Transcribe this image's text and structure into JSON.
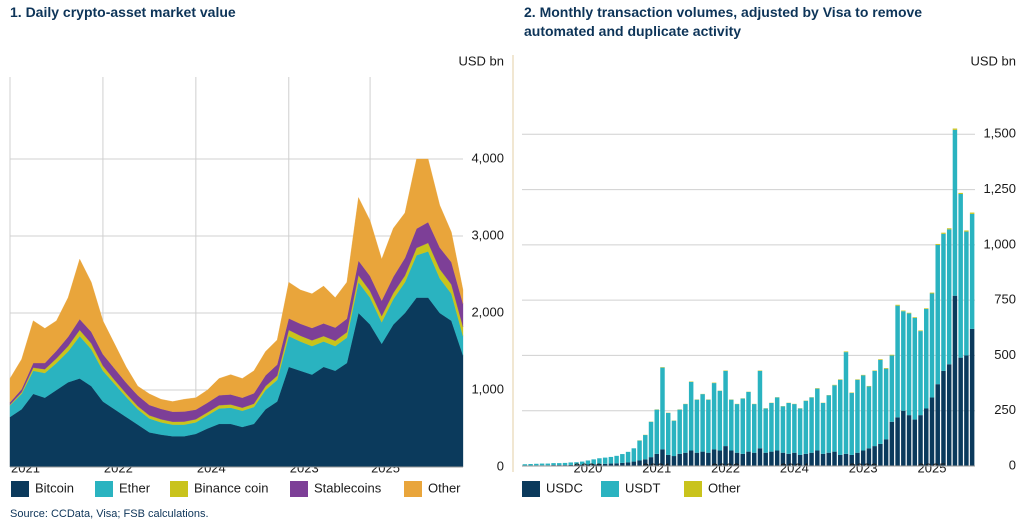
{
  "chart_data": [
    {
      "type": "area",
      "stacked": true,
      "title": "1. Daily crypto-asset market value",
      "y_label": "USD bn",
      "categories": [
        "2021",
        null,
        null,
        null,
        null,
        null,
        null,
        null,
        "2022",
        null,
        null,
        null,
        null,
        null,
        null,
        null,
        "2024",
        null,
        null,
        null,
        null,
        null,
        null,
        null,
        "2023",
        null,
        null,
        null,
        null,
        null,
        null,
        "2025",
        null,
        null,
        null,
        null,
        null,
        null,
        null,
        null
      ],
      "series": [
        {
          "name": "Bitcoin",
          "color": "#0b3a5c",
          "values": [
            650,
            750,
            950,
            900,
            1000,
            1100,
            1150,
            1050,
            850,
            750,
            650,
            550,
            450,
            420,
            400,
            400,
            430,
            500,
            560,
            560,
            520,
            560,
            750,
            850,
            1300,
            1250,
            1200,
            1300,
            1250,
            1350,
            2000,
            1850,
            1600,
            1850,
            2000,
            2200,
            2200,
            2000,
            1900,
            1450
          ]
        },
        {
          "name": "Ether",
          "color": "#2ab3c0",
          "values": [
            150,
            200,
            300,
            320,
            350,
            400,
            550,
            480,
            400,
            330,
            260,
            200,
            180,
            160,
            150,
            150,
            150,
            170,
            200,
            210,
            210,
            220,
            250,
            280,
            400,
            380,
            370,
            330,
            320,
            330,
            400,
            350,
            280,
            330,
            400,
            550,
            600,
            450,
            350,
            250
          ]
        },
        {
          "name": "Binance coin",
          "color": "#c9c31c",
          "values": [
            10,
            20,
            40,
            50,
            60,
            70,
            80,
            75,
            65,
            50,
            45,
            40,
            40,
            40,
            38,
            40,
            40,
            40,
            42,
            42,
            40,
            42,
            50,
            55,
            80,
            75,
            75,
            70,
            70,
            70,
            90,
            85,
            80,
            80,
            85,
            95,
            110,
            120,
            120,
            120
          ]
        },
        {
          "name": "Stablecoins",
          "color": "#7d3f97",
          "values": [
            30,
            40,
            60,
            80,
            100,
            120,
            140,
            150,
            150,
            150,
            140,
            140,
            135,
            135,
            130,
            130,
            125,
            125,
            130,
            130,
            130,
            135,
            140,
            145,
            150,
            155,
            160,
            165,
            170,
            175,
            190,
            195,
            200,
            210,
            230,
            250,
            270,
            280,
            290,
            300
          ]
        },
        {
          "name": "Other",
          "color": "#e9a53b",
          "values": [
            310,
            390,
            550,
            450,
            390,
            510,
            780,
            645,
            435,
            320,
            205,
            120,
            145,
            125,
            132,
            160,
            155,
            165,
            218,
            258,
            250,
            293,
            310,
            320,
            470,
            440,
            445,
            485,
            390,
            475,
            820,
            720,
            540,
            630,
            585,
            905,
            820,
            550,
            390,
            180
          ]
        }
      ],
      "ylim": [
        0,
        5000
      ],
      "yticks": [
        0,
        {
          "value": 1000,
          "label": "1,000"
        },
        {
          "value": 2000,
          "label": "2,000"
        },
        {
          "value": 3000,
          "label": "3,000"
        },
        {
          "value": 4000,
          "label": "4,000"
        }
      ],
      "grid": true,
      "legend": "bottom"
    },
    {
      "type": "bar",
      "stacked": true,
      "title": "2. Monthly transaction volumes, adjusted by Visa to remove automated and duplicate activity",
      "y_label": "USD bn",
      "categories": [
        null,
        null,
        null,
        null,
        null,
        null,
        null,
        null,
        null,
        null,
        null,
        "2020",
        null,
        null,
        null,
        null,
        null,
        null,
        null,
        null,
        null,
        null,
        null,
        "2021",
        null,
        null,
        null,
        null,
        null,
        null,
        null,
        null,
        null,
        null,
        null,
        "2022",
        null,
        null,
        null,
        null,
        null,
        null,
        null,
        null,
        null,
        null,
        null,
        "2024",
        null,
        null,
        null,
        null,
        null,
        null,
        null,
        null,
        null,
        null,
        null,
        "2023",
        null,
        null,
        null,
        null,
        null,
        null,
        null,
        null,
        null,
        null,
        null,
        "2025",
        null,
        null,
        null,
        null,
        null,
        null,
        null
      ],
      "series": [
        {
          "name": "USDC",
          "color": "#0b3a5c",
          "values": [
            2,
            2,
            3,
            3,
            3,
            4,
            4,
            4,
            5,
            5,
            6,
            7,
            8,
            10,
            10,
            11,
            12,
            14,
            16,
            20,
            25,
            30,
            40,
            55,
            75,
            50,
            45,
            55,
            60,
            70,
            60,
            65,
            60,
            75,
            70,
            90,
            70,
            60,
            55,
            65,
            60,
            80,
            60,
            65,
            70,
            60,
            55,
            60,
            50,
            55,
            60,
            70,
            55,
            60,
            65,
            50,
            55,
            50,
            60,
            70,
            80,
            90,
            100,
            120,
            200,
            220,
            250,
            230,
            210,
            230,
            260,
            310,
            370,
            430,
            460,
            770,
            490,
            500,
            620
          ]
        },
        {
          "name": "USDT",
          "color": "#2ab3c0",
          "values": [
            6,
            7,
            7,
            8,
            8,
            9,
            9,
            10,
            11,
            12,
            14,
            18,
            22,
            25,
            28,
            30,
            34,
            40,
            48,
            60,
            90,
            110,
            160,
            200,
            370,
            190,
            160,
            200,
            220,
            310,
            240,
            260,
            240,
            300,
            270,
            340,
            230,
            220,
            250,
            270,
            220,
            350,
            200,
            220,
            240,
            210,
            230,
            220,
            210,
            240,
            250,
            280,
            230,
            260,
            300,
            340,
            460,
            280,
            330,
            340,
            280,
            340,
            380,
            320,
            300,
            505,
            450,
            460,
            460,
            380,
            450,
            470,
            630,
            620,
            610,
            750,
            740,
            560,
            520
          ]
        },
        {
          "name": "Other",
          "color": "#c9c31c",
          "values": [
            0,
            0,
            0,
            0,
            0,
            0,
            0,
            0,
            0,
            0,
            0,
            0,
            0,
            0,
            0,
            0,
            0,
            0,
            0,
            0,
            1,
            1,
            1,
            1,
            2,
            1,
            1,
            1,
            1,
            2,
            1,
            1,
            1,
            2,
            1,
            2,
            1,
            1,
            1,
            1,
            1,
            2,
            1,
            1,
            1,
            1,
            1,
            1,
            1,
            1,
            1,
            2,
            1,
            1,
            2,
            2,
            3,
            2,
            2,
            2,
            2,
            2,
            3,
            3,
            3,
            4,
            3,
            3,
            3,
            3,
            3,
            4,
            4,
            5,
            5,
            6,
            5,
            5,
            6
          ]
        }
      ],
      "ylim": [
        0,
        1750
      ],
      "yticks": [
        0,
        250,
        500,
        750,
        {
          "value": 1000,
          "label": "1,000"
        },
        {
          "value": 1250,
          "label": "1,250"
        },
        {
          "value": 1500,
          "label": "1,500"
        }
      ],
      "grid": true,
      "legend": "bottom"
    }
  ],
  "source": "Source: CCData, Visa; FSB calculations."
}
